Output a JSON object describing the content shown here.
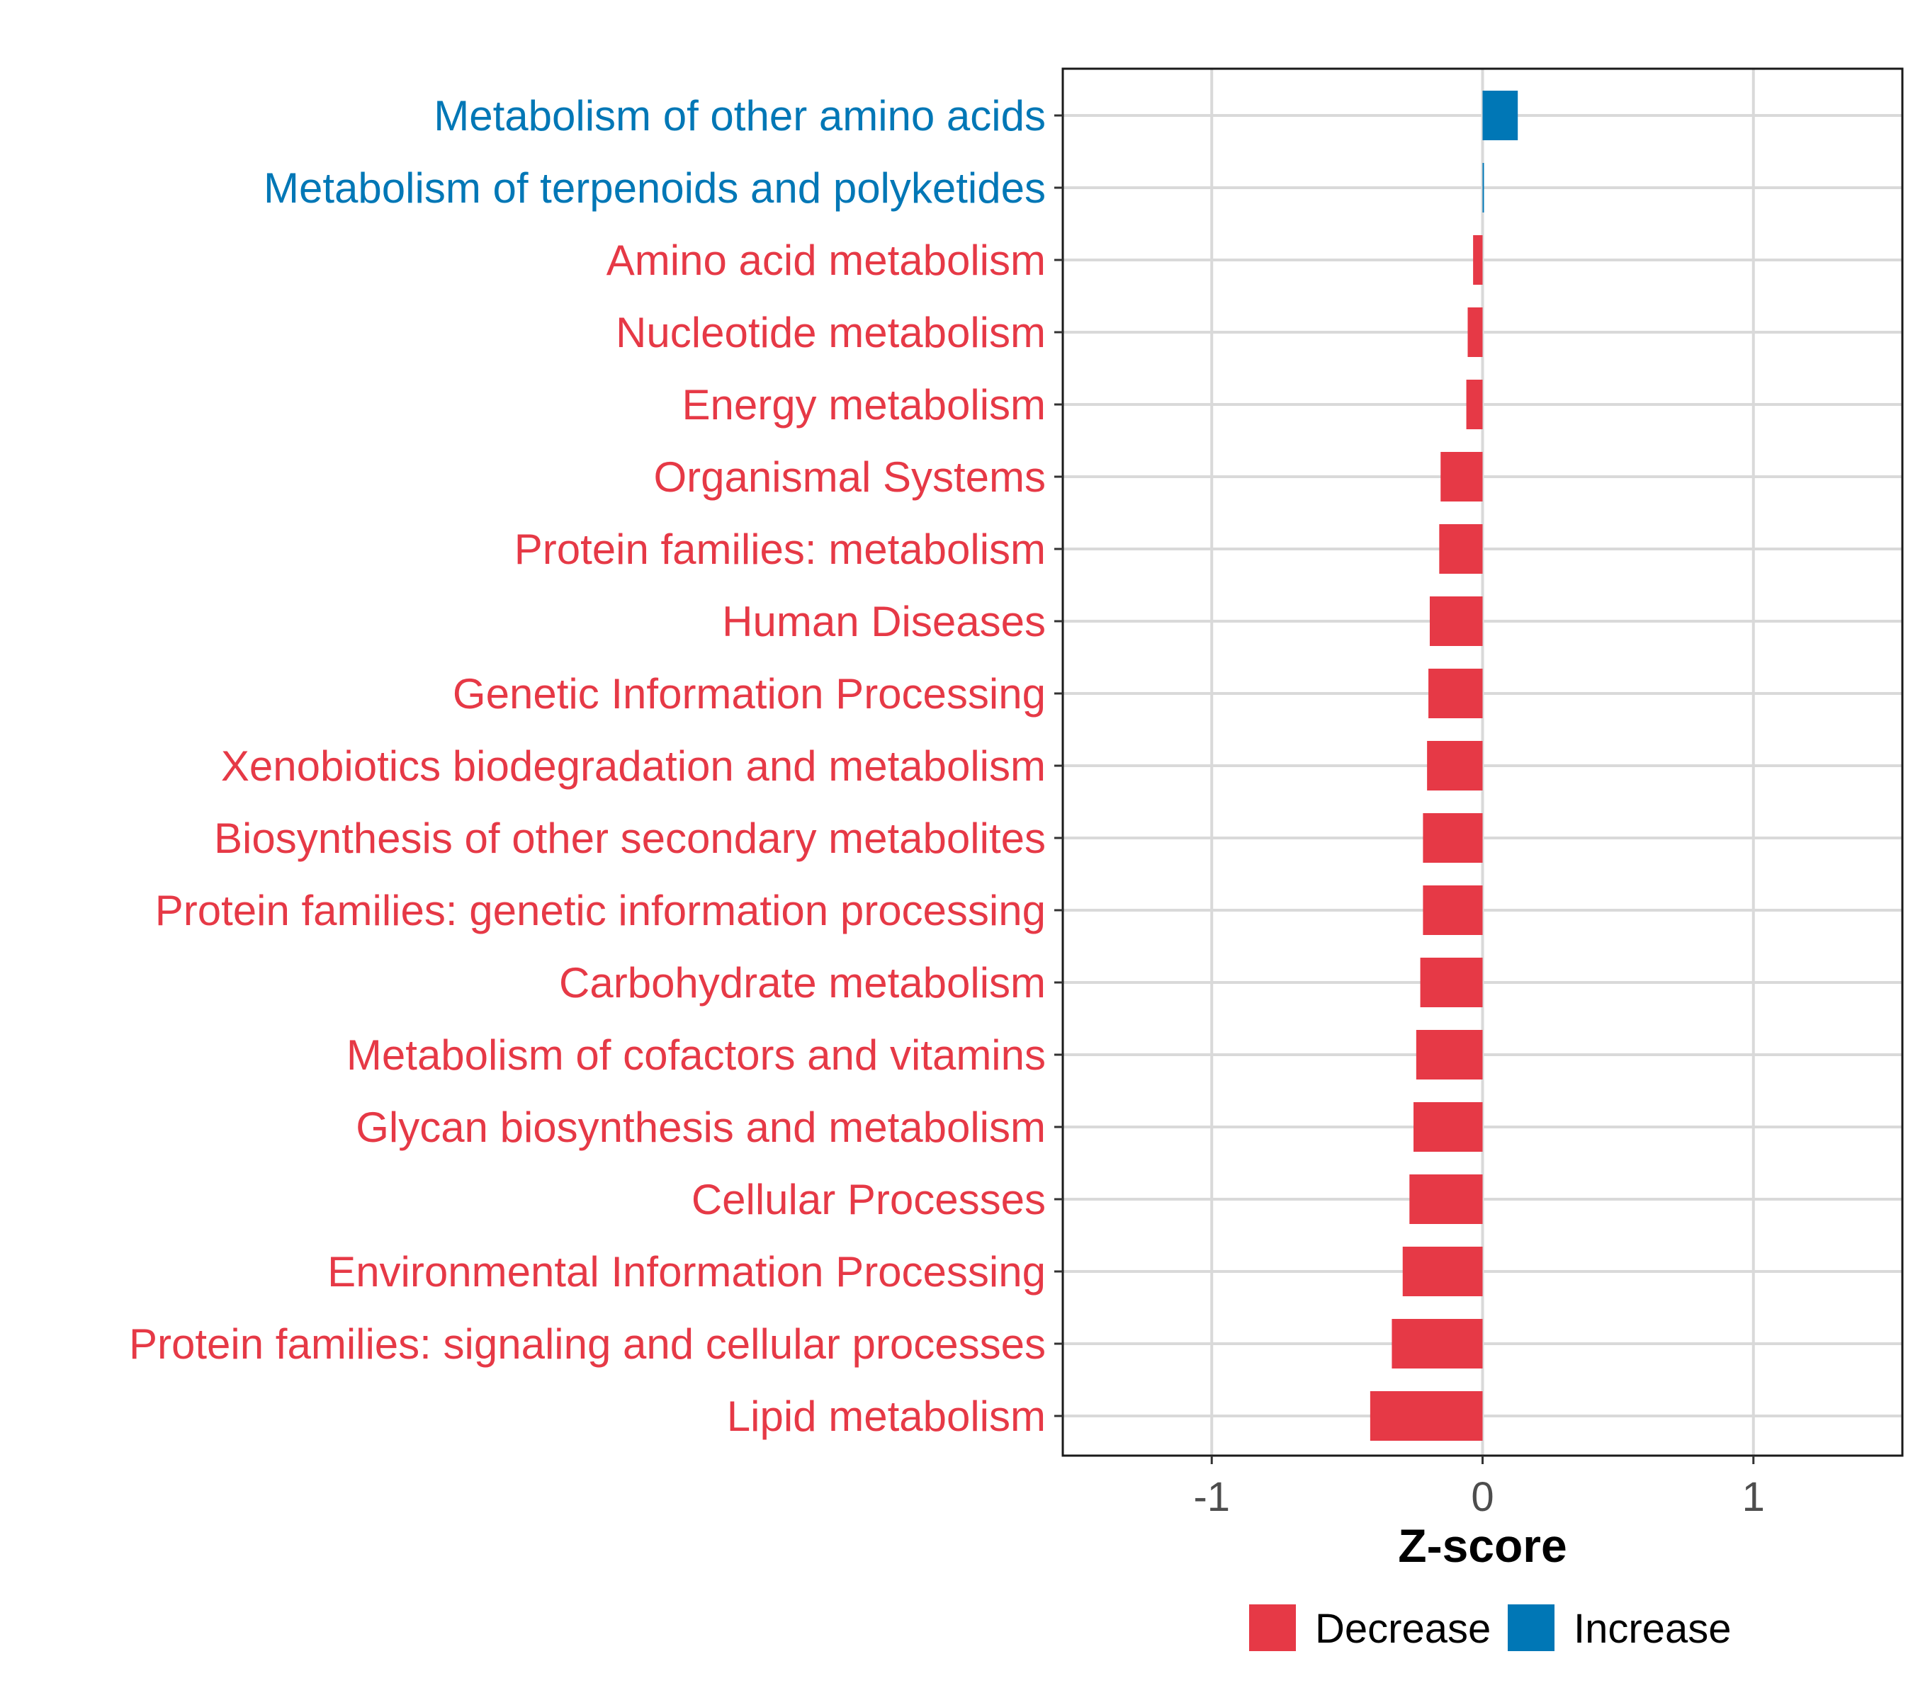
{
  "chart_data": {
    "type": "bar",
    "orientation": "horizontal",
    "title": "",
    "xlabel": "Z-score",
    "ylabel": "",
    "xlim": [
      -1.55,
      1.55
    ],
    "xticks": [
      -1,
      0,
      1
    ],
    "xtick_labels": [
      "-1",
      "0",
      "1"
    ],
    "grid": true,
    "legend_position": "bottom",
    "colors": {
      "Decrease": "#e63946",
      "Increase": "#0077b6"
    },
    "legend": [
      {
        "label": "Decrease",
        "color": "#e63946"
      },
      {
        "label": "Increase",
        "color": "#0077b6"
      }
    ],
    "categories": [
      "Metabolism of other amino acids",
      "Metabolism of terpenoids and polyketides",
      "Amino acid metabolism",
      "Nucleotide metabolism",
      "Energy metabolism",
      "Organismal Systems",
      "Protein families: metabolism",
      "Human Diseases",
      "Genetic Information Processing",
      "Xenobiotics biodegradation and metabolism",
      "Biosynthesis of other secondary metabolites",
      "Protein families: genetic information processing",
      "Carbohydrate metabolism",
      "Metabolism of cofactors and vitamins",
      "Glycan biosynthesis and metabolism",
      "Cellular Processes",
      "Environmental Information Processing",
      "Protein families: signaling and cellular processes",
      "Lipid metabolism"
    ],
    "values": [
      0.13,
      0.005,
      -0.035,
      -0.055,
      -0.06,
      -0.155,
      -0.16,
      -0.195,
      -0.2,
      -0.205,
      -0.22,
      -0.22,
      -0.23,
      -0.245,
      -0.255,
      -0.27,
      -0.295,
      -0.335,
      -0.415
    ],
    "groups": [
      "Increase",
      "Increase",
      "Decrease",
      "Decrease",
      "Decrease",
      "Decrease",
      "Decrease",
      "Decrease",
      "Decrease",
      "Decrease",
      "Decrease",
      "Decrease",
      "Decrease",
      "Decrease",
      "Decrease",
      "Decrease",
      "Decrease",
      "Decrease",
      "Decrease"
    ]
  }
}
